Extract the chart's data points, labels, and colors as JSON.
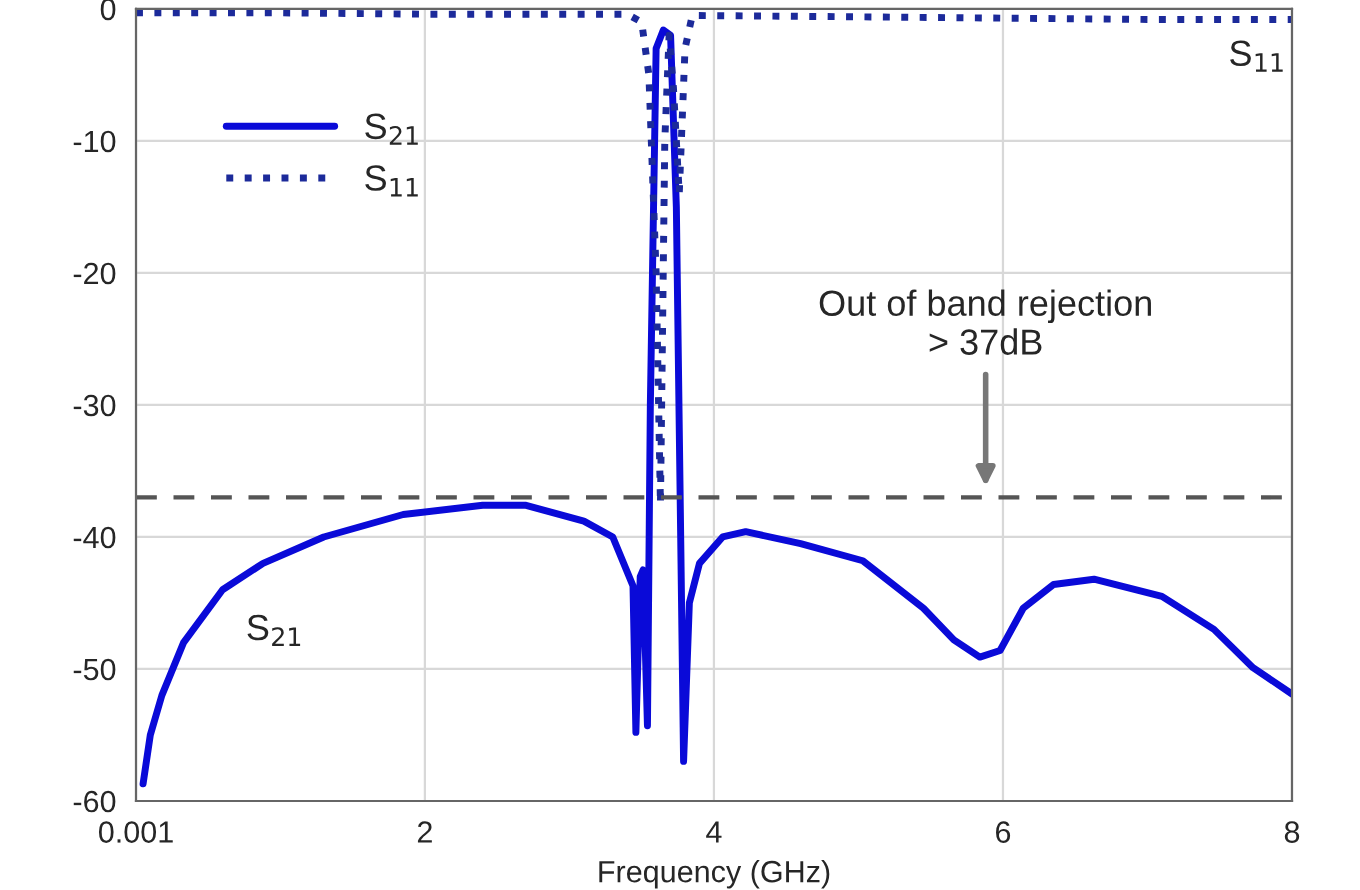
{
  "chart_data": {
    "type": "line",
    "xlabel": "Frequency (GHz)",
    "xlim": [
      0.001,
      8
    ],
    "xticks": [
      0.001,
      2,
      4,
      6,
      8
    ],
    "ylim": [
      -60,
      0
    ],
    "yticks": [
      -60,
      -50,
      -40,
      -30,
      -20,
      -10,
      0
    ],
    "grid": true,
    "legend": "top left",
    "series": [
      {
        "name": "S$_{21}$",
        "color": "#0a0ad8",
        "line_style": "solid",
        "x": [
          0.05,
          0.1,
          0.18,
          0.33,
          0.6,
          0.88,
          1.3,
          1.85,
          2.4,
          2.7,
          3.1,
          3.3,
          3.44,
          3.46,
          3.49,
          3.51,
          3.54,
          3.56,
          3.6,
          3.65,
          3.7,
          3.74,
          3.77,
          3.79,
          3.83,
          3.9,
          4.06,
          4.22,
          4.6,
          5.03,
          5.45,
          5.66,
          5.84,
          5.98,
          6.14,
          6.35,
          6.63,
          7.1,
          7.46,
          7.73,
          8
        ],
        "values": [
          -58.7,
          -55,
          -52,
          -48,
          -44,
          -42,
          -40,
          -38.3,
          -37.6,
          -37.6,
          -38.8,
          -40,
          -43.7,
          -54.8,
          -43,
          -42.5,
          -54.3,
          -30,
          -3,
          -1.6,
          -2,
          -15,
          -40,
          -57,
          -45,
          -42,
          -40,
          -39.6,
          -40.5,
          -41.8,
          -45.4,
          -47.8,
          -49.1,
          -48.6,
          -45.4,
          -43.6,
          -43.2,
          -44.5,
          -47,
          -49.9,
          -51.9
        ]
      },
      {
        "name": "S$_{11}$",
        "color": "#1c2a9a",
        "line_style": "dotted",
        "x": [
          0.001,
          1,
          2,
          3,
          3.4,
          3.5,
          3.55,
          3.6,
          3.63,
          3.66,
          3.69,
          3.72,
          3.76,
          3.8,
          3.85,
          5,
          6,
          7,
          8
        ],
        "values": [
          -0.3,
          -0.3,
          -0.4,
          -0.4,
          -0.4,
          -1,
          -5,
          -20,
          -37.5,
          -10,
          -2,
          -6,
          -14,
          -3,
          -0.5,
          -0.6,
          -0.7,
          -0.8,
          -0.8
        ]
      }
    ],
    "ref_lines": [
      {
        "axis": "y",
        "value": -37,
        "color": "#555555",
        "line_style": "dashed"
      }
    ],
    "annotations": [
      "Out of band rejection\n> 37dB",
      "S$_{21}$",
      "S$_{11}$"
    ]
  }
}
